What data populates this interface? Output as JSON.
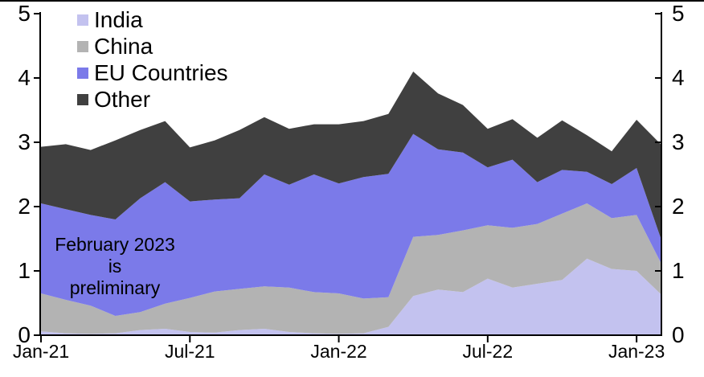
{
  "chart_data": {
    "type": "area",
    "stacked": true,
    "title": "",
    "xlabel": "",
    "ylabel": "",
    "ylim": [
      0,
      5
    ],
    "y_ticks": [
      0,
      1,
      2,
      3,
      4,
      5
    ],
    "dual_y_axis": true,
    "grid": false,
    "legend_position": "top-left-inside",
    "months": [
      "Jan-21",
      "Feb-21",
      "Mar-21",
      "Apr-21",
      "May-21",
      "Jun-21",
      "Jul-21",
      "Aug-21",
      "Sep-21",
      "Oct-21",
      "Nov-21",
      "Dec-21",
      "Jan-22",
      "Feb-22",
      "Mar-22",
      "Apr-22",
      "May-22",
      "Jun-22",
      "Jul-22",
      "Aug-22",
      "Sep-22",
      "Oct-22",
      "Nov-22",
      "Dec-22",
      "Jan-23",
      "Feb-23"
    ],
    "x_ticks": [
      {
        "index": 0,
        "label": "Jan-21"
      },
      {
        "index": 6,
        "label": "Jul-21"
      },
      {
        "index": 12,
        "label": "Jan-22"
      },
      {
        "index": 18,
        "label": "Jul-22"
      },
      {
        "index": 24,
        "label": "Jan-23"
      }
    ],
    "series": [
      {
        "name": "India",
        "color": "#c3c2ef",
        "values": [
          0.06,
          0.03,
          0.02,
          0.03,
          0.08,
          0.1,
          0.05,
          0.04,
          0.08,
          0.1,
          0.05,
          0.03,
          0.02,
          0.03,
          0.13,
          0.61,
          0.71,
          0.67,
          0.88,
          0.74,
          0.8,
          0.86,
          1.19,
          1.03,
          1.0,
          0.63
        ]
      },
      {
        "name": "China",
        "color": "#b3b3b3",
        "values": [
          0.59,
          0.52,
          0.44,
          0.27,
          0.28,
          0.39,
          0.53,
          0.64,
          0.64,
          0.66,
          0.69,
          0.64,
          0.63,
          0.54,
          0.46,
          0.92,
          0.85,
          0.96,
          0.83,
          0.93,
          0.93,
          1.03,
          0.86,
          0.79,
          0.87,
          0.48
        ]
      },
      {
        "name": "EU Countries",
        "color": "#7b7ae9",
        "values": [
          1.4,
          1.41,
          1.41,
          1.5,
          1.77,
          1.89,
          1.5,
          1.43,
          1.41,
          1.74,
          1.6,
          1.83,
          1.71,
          1.89,
          1.92,
          1.6,
          1.33,
          1.21,
          0.9,
          1.06,
          0.65,
          0.68,
          0.49,
          0.53,
          0.73,
          0.37
        ]
      },
      {
        "name": "Other",
        "color": "#404040",
        "values": [
          0.88,
          1.01,
          1.01,
          1.23,
          1.06,
          0.95,
          0.84,
          0.92,
          1.06,
          0.89,
          0.87,
          0.78,
          0.92,
          0.87,
          0.93,
          0.97,
          0.87,
          0.74,
          0.6,
          0.63,
          0.69,
          0.77,
          0.57,
          0.51,
          0.75,
          1.48
        ]
      }
    ],
    "axis_color": "#000000"
  },
  "legend": {
    "items": [
      {
        "label": "India",
        "color": "#c3c2ef"
      },
      {
        "label": "China",
        "color": "#b3b3b3"
      },
      {
        "label": "EU Countries",
        "color": "#7b7ae9"
      },
      {
        "label": "Other",
        "color": "#404040"
      }
    ]
  },
  "annotation": {
    "line1": "February 2023 is",
    "line2": "preliminary"
  }
}
